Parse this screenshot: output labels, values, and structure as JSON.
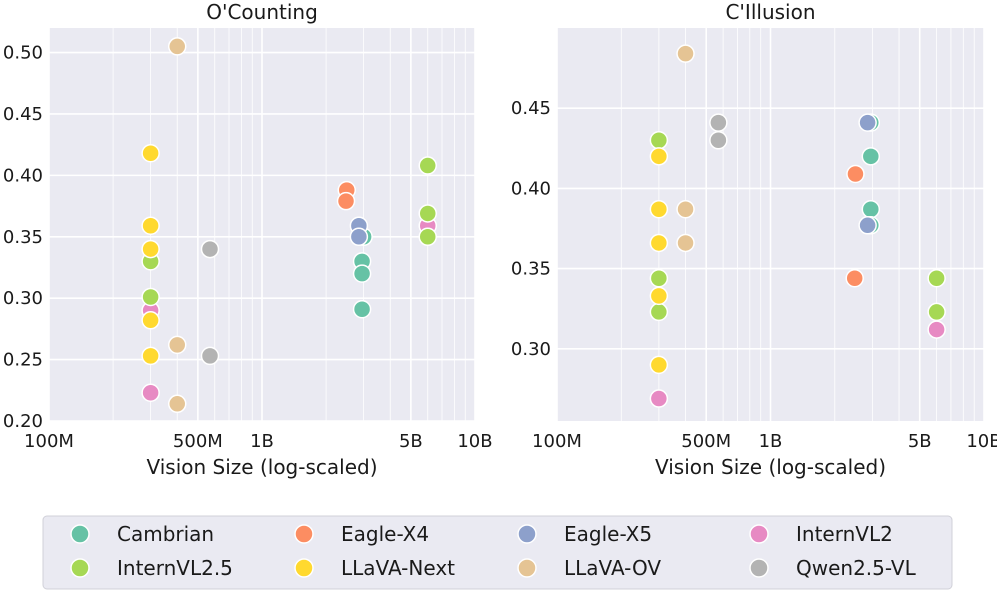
{
  "chart_data": [
    {
      "type": "scatter",
      "title": "O'Counting",
      "xlabel": "Vision Size (log-scaled)",
      "ylabel": "",
      "xscale": "log",
      "xlim": [
        100000000,
        10000000000
      ],
      "ylim": [
        0.2,
        0.52
      ],
      "xticks": [
        {
          "value": 100000000,
          "label": "100M"
        },
        {
          "value": 500000000,
          "label": "500M"
        },
        {
          "value": 1000000000,
          "label": "1B"
        },
        {
          "value": 5000000000,
          "label": "5B"
        },
        {
          "value": 10000000000,
          "label": "10B"
        }
      ],
      "yticks": [
        {
          "value": 0.2,
          "label": "0.20"
        },
        {
          "value": 0.25,
          "label": "0.25"
        },
        {
          "value": 0.3,
          "label": "0.30"
        },
        {
          "value": 0.35,
          "label": "0.35"
        },
        {
          "value": 0.4,
          "label": "0.40"
        },
        {
          "value": 0.45,
          "label": "0.45"
        },
        {
          "value": 0.5,
          "label": "0.50"
        }
      ],
      "series": [
        {
          "name": "Cambrian",
          "points": [
            {
              "x": 3000000000,
              "y": 0.35
            },
            {
              "x": 2950000000,
              "y": 0.33
            },
            {
              "x": 2950000000,
              "y": 0.32
            },
            {
              "x": 2950000000,
              "y": 0.291
            }
          ]
        },
        {
          "name": "Eagle-X4",
          "points": [
            {
              "x": 2500000000,
              "y": 0.388
            },
            {
              "x": 2480000000,
              "y": 0.379
            }
          ]
        },
        {
          "name": "Eagle-X5",
          "points": [
            {
              "x": 2850000000,
              "y": 0.359
            },
            {
              "x": 2850000000,
              "y": 0.35
            }
          ]
        },
        {
          "name": "InternVL2",
          "points": [
            {
              "x": 6000000000,
              "y": 0.359
            },
            {
              "x": 300000000,
              "y": 0.29
            },
            {
              "x": 300000000,
              "y": 0.223
            }
          ]
        },
        {
          "name": "InternVL2.5",
          "points": [
            {
              "x": 6000000000,
              "y": 0.408
            },
            {
              "x": 6000000000,
              "y": 0.369
            },
            {
              "x": 6000000000,
              "y": 0.35
            },
            {
              "x": 300000000,
              "y": 0.33
            },
            {
              "x": 300000000,
              "y": 0.301
            }
          ]
        },
        {
          "name": "LLaVA-Next",
          "points": [
            {
              "x": 300000000,
              "y": 0.418
            },
            {
              "x": 300000000,
              "y": 0.359
            },
            {
              "x": 300000000,
              "y": 0.34
            },
            {
              "x": 300000000,
              "y": 0.282
            },
            {
              "x": 300000000,
              "y": 0.253
            }
          ]
        },
        {
          "name": "LLaVA-OV",
          "points": [
            {
              "x": 400000000,
              "y": 0.505
            },
            {
              "x": 400000000,
              "y": 0.262
            },
            {
              "x": 400000000,
              "y": 0.214
            }
          ]
        },
        {
          "name": "Qwen2.5-VL",
          "points": [
            {
              "x": 570000000,
              "y": 0.34
            },
            {
              "x": 570000000,
              "y": 0.253
            }
          ]
        }
      ]
    },
    {
      "type": "scatter",
      "title": "C'Illusion",
      "xlabel": "Vision Size (log-scaled)",
      "ylabel": "",
      "xscale": "log",
      "xlim": [
        100000000,
        10000000000
      ],
      "ylim": [
        0.255,
        0.5
      ],
      "xticks": [
        {
          "value": 100000000,
          "label": "100M"
        },
        {
          "value": 500000000,
          "label": "500M"
        },
        {
          "value": 1000000000,
          "label": "1B"
        },
        {
          "value": 5000000000,
          "label": "5B"
        },
        {
          "value": 10000000000,
          "label": "10B"
        }
      ],
      "yticks": [
        {
          "value": 0.3,
          "label": "0.30"
        },
        {
          "value": 0.35,
          "label": "0.35"
        },
        {
          "value": 0.4,
          "label": "0.40"
        },
        {
          "value": 0.45,
          "label": "0.45"
        }
      ],
      "series": [
        {
          "name": "Cambrian",
          "points": [
            {
              "x": 2950000000,
              "y": 0.441
            },
            {
              "x": 2950000000,
              "y": 0.42
            },
            {
              "x": 2950000000,
              "y": 0.387
            },
            {
              "x": 2950000000,
              "y": 0.377
            }
          ]
        },
        {
          "name": "Eagle-X4",
          "points": [
            {
              "x": 2500000000,
              "y": 0.409
            },
            {
              "x": 2480000000,
              "y": 0.344
            }
          ]
        },
        {
          "name": "Eagle-X5",
          "points": [
            {
              "x": 2850000000,
              "y": 0.441
            },
            {
              "x": 2850000000,
              "y": 0.377
            }
          ]
        },
        {
          "name": "InternVL2",
          "points": [
            {
              "x": 6000000000,
              "y": 0.312
            },
            {
              "x": 300000000,
              "y": 0.269
            }
          ]
        },
        {
          "name": "InternVL2.5",
          "points": [
            {
              "x": 300000000,
              "y": 0.43
            },
            {
              "x": 300000000,
              "y": 0.344
            },
            {
              "x": 300000000,
              "y": 0.323
            },
            {
              "x": 6000000000,
              "y": 0.344
            },
            {
              "x": 6000000000,
              "y": 0.323
            }
          ]
        },
        {
          "name": "LLaVA-Next",
          "points": [
            {
              "x": 300000000,
              "y": 0.42
            },
            {
              "x": 300000000,
              "y": 0.387
            },
            {
              "x": 300000000,
              "y": 0.366
            },
            {
              "x": 300000000,
              "y": 0.333
            },
            {
              "x": 300000000,
              "y": 0.29
            }
          ]
        },
        {
          "name": "LLaVA-OV",
          "points": [
            {
              "x": 400000000,
              "y": 0.484
            },
            {
              "x": 400000000,
              "y": 0.387
            },
            {
              "x": 400000000,
              "y": 0.366
            }
          ]
        },
        {
          "name": "Qwen2.5-VL",
          "points": [
            {
              "x": 570000000,
              "y": 0.441
            },
            {
              "x": 570000000,
              "y": 0.43
            }
          ]
        }
      ]
    }
  ],
  "legend": {
    "placement": "bottom",
    "items": [
      {
        "name": "Cambrian",
        "color": "#66c2a5"
      },
      {
        "name": "Eagle-X4",
        "color": "#fc8d62"
      },
      {
        "name": "Eagle-X5",
        "color": "#8da0cb"
      },
      {
        "name": "InternVL2",
        "color": "#e78ac3"
      },
      {
        "name": "InternVL2.5",
        "color": "#a6d854"
      },
      {
        "name": "LLaVA-Next",
        "color": "#ffd92f"
      },
      {
        "name": "LLaVA-OV",
        "color": "#e5c494"
      },
      {
        "name": "Qwen2.5-VL",
        "color": "#b3b3b3"
      }
    ]
  }
}
